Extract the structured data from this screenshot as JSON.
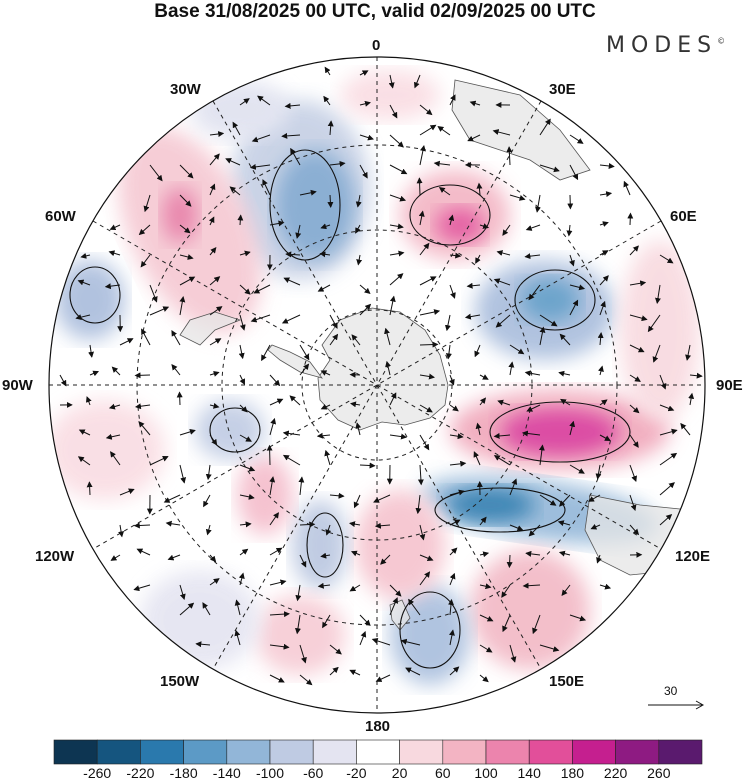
{
  "header": {
    "title": "Base 31/08/2025 00 UTC, valid 02/09/2025 00 UTC",
    "brand": "MODES",
    "brand_mark": "©"
  },
  "map": {
    "projection": "south-polar-stereographic",
    "longitude_labels": {
      "top": "0",
      "bottom": "180",
      "left": "90W",
      "right": "90E",
      "upper_left_1": "30W",
      "upper_left_2": "60W",
      "upper_right_1": "30E",
      "upper_right_2": "60E",
      "lower_left_1": "120W",
      "lower_left_2": "150W",
      "lower_right_1": "120E",
      "lower_right_2": "150E"
    },
    "reference_vector": "30"
  },
  "colorbar": {
    "ticks": [
      "-260",
      "-220",
      "-180",
      "-140",
      "-100",
      "-60",
      "-20",
      "20",
      "60",
      "100",
      "140",
      "180",
      "220",
      "260"
    ],
    "colors": [
      "#0d3552",
      "#15557f",
      "#2a79ad",
      "#5c9ac6",
      "#92b6d8",
      "#bfcbe3",
      "#e4e4f1",
      "#ffffff",
      "#f8d9df",
      "#f3b4c3",
      "#ec84ad",
      "#e24f9a",
      "#c51f8f",
      "#8e1b82",
      "#5a1a6e"
    ]
  },
  "colors": {
    "land": "#e6e6e6",
    "positive": "#f0a6b9",
    "negative": "#7ea6cf"
  }
}
